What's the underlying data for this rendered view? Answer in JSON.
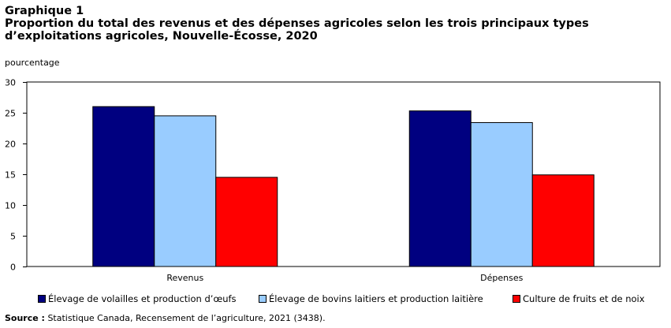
{
  "header": {
    "graph_label": "Graphique 1",
    "title": "Proportion du total des revenus et des dépenses agricoles selon les trois principaux types d’exploitations agricoles, Nouvelle-Écosse, 2020"
  },
  "source": {
    "label": "Source :",
    "text": "Statistique Canada, Recensement de l’agriculture, 2021 (3438)."
  },
  "chart_data": {
    "type": "bar",
    "title": "Proportion du total des revenus et des dépenses agricoles selon les trois principaux types d’exploitations agricoles, Nouvelle-Écosse, 2020",
    "ylabel": "pourcentage",
    "xlabel": "",
    "categories": [
      "Revenus",
      "Dépenses"
    ],
    "ylim": [
      0,
      30
    ],
    "yticks": [
      0,
      5,
      10,
      15,
      20,
      25,
      30
    ],
    "grid": false,
    "legend_position": "bottom",
    "series": [
      {
        "name": "Élevage de volailles et production d’œufs",
        "color": "#000080",
        "values": [
          26.0,
          25.3
        ]
      },
      {
        "name": "Élevage de bovins laitiers et production laitière",
        "color": "#99ccff",
        "values": [
          24.5,
          23.4
        ]
      },
      {
        "name": "Culture de fruits et de noix",
        "color": "#ff0000",
        "values": [
          14.5,
          14.9
        ]
      }
    ]
  }
}
